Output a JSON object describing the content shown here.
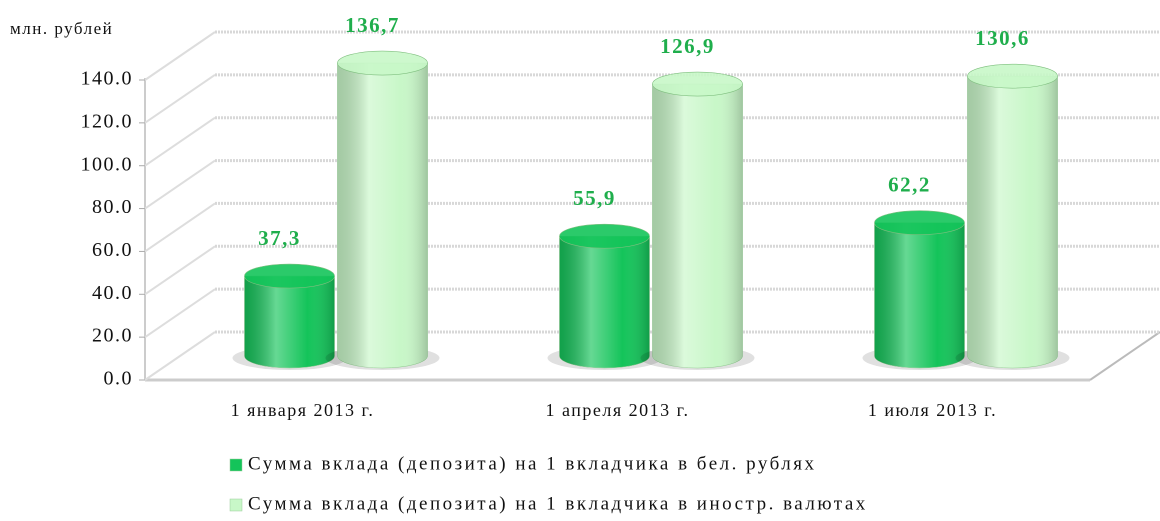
{
  "chart_data": {
    "type": "bar3d",
    "ylabel": "млн. рублей",
    "categories": [
      "1 января 2013 г.",
      "1 апреля 2013 г.",
      "1 июля 2013 г."
    ],
    "series": [
      {
        "name": "Сумма вклада (депозита) на 1 вкладчика в бел. рублях",
        "color": "#14c45a",
        "values": [
          37.3,
          55.9,
          62.2
        ],
        "value_labels": [
          "37,3",
          "55,9",
          "62,2"
        ]
      },
      {
        "name": "Сумма вклада (депозита) на 1 вкладчика в иностр. валютах",
        "color": "#c8f7c8",
        "values": [
          136.7,
          126.9,
          130.6
        ],
        "value_labels": [
          "136,7",
          "126,9",
          "130,6"
        ]
      }
    ],
    "ylim": [
      0,
      140
    ],
    "yticks": [
      {
        "value": 0,
        "label": "0.0"
      },
      {
        "value": 20,
        "label": "20.0"
      },
      {
        "value": 40,
        "label": "40.0"
      },
      {
        "value": 60,
        "label": "60.0"
      },
      {
        "value": 80,
        "label": "80.0"
      },
      {
        "value": 100,
        "label": "100.0"
      },
      {
        "value": 120,
        "label": "120.0"
      },
      {
        "value": 140,
        "label": "140.0"
      }
    ],
    "grid": true,
    "label_color": "#1fae4c"
  }
}
